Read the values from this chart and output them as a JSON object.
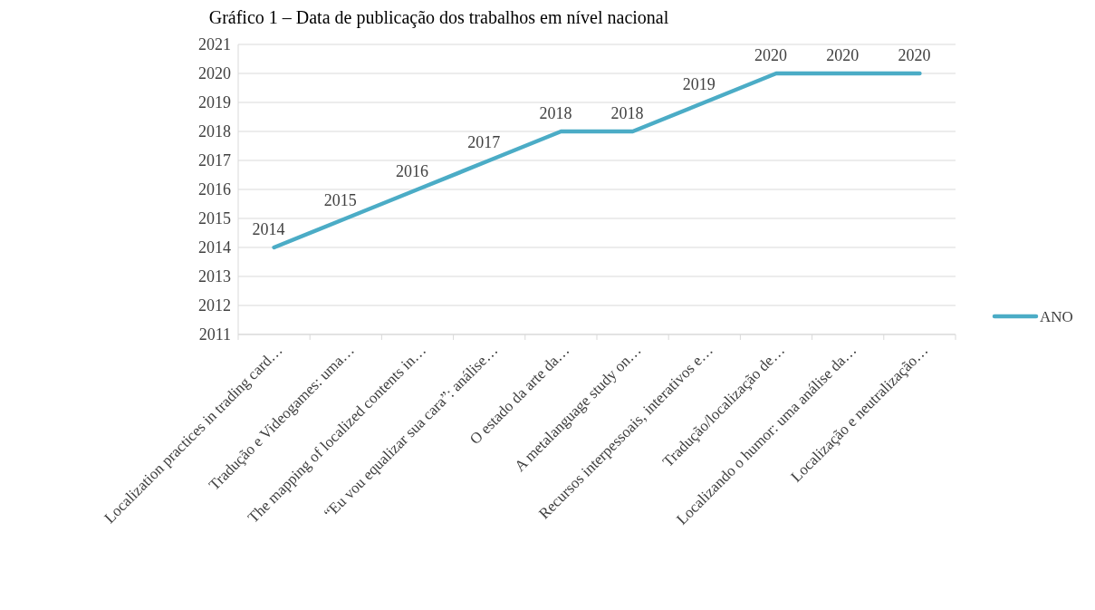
{
  "chart_data": {
    "type": "line",
    "title": "Gráfico 1 – Data de publicação dos trabalhos em nível nacional",
    "categories": [
      "Localization practices in trading card…",
      "Tradução e Videogames: uma…",
      "The mapping of localized contents in…",
      "“Eu vou equalizar sua cara”: análise…",
      "O estado da arte da…",
      "A metalanguage study on…",
      "Recursos interpessoais, interativos e…",
      "Tradução/localização de…",
      "Localizando o humor: uma análise da…",
      "Localização e neutralização…"
    ],
    "series": [
      {
        "name": "ANO",
        "color": "#4bacc6",
        "values": [
          2014,
          2015,
          2016,
          2017,
          2018,
          2018,
          2019,
          2020,
          2020,
          2020
        ]
      }
    ],
    "ylim": [
      2011,
      2021
    ],
    "yticks": [
      2011,
      2012,
      2013,
      2014,
      2015,
      2016,
      2017,
      2018,
      2019,
      2020,
      2021
    ],
    "grid": "y",
    "legend": "right",
    "data_labels": true,
    "marker": "none"
  }
}
